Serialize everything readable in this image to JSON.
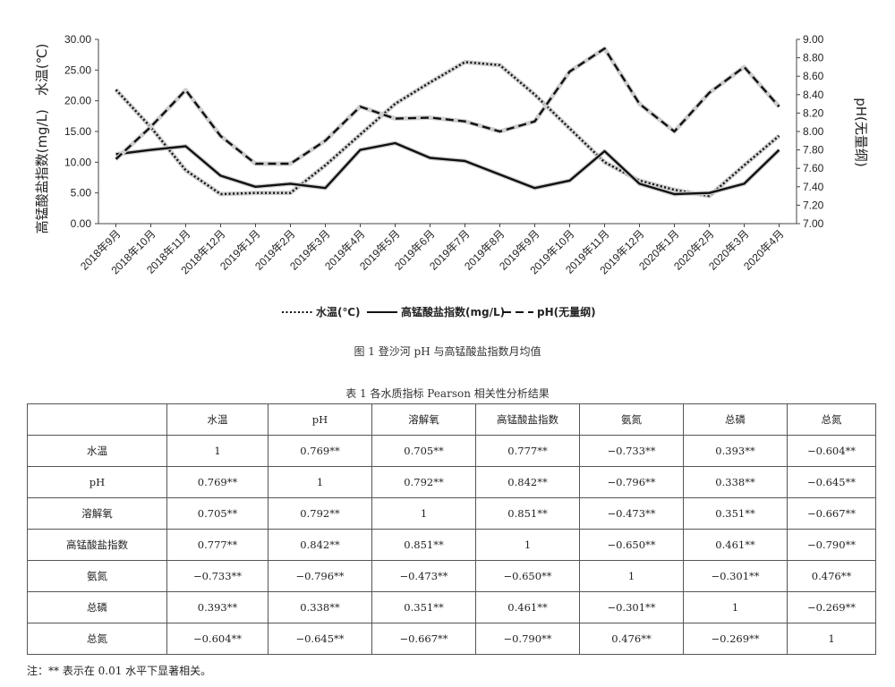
{
  "figure_caption": "图 1 登沙河 pH 与高锰酸盐指数月均值",
  "table_caption": "表 1 各水质指标 Pearson 相关性分析结果",
  "note": "注：** 表示在 0.01 水平下显著相关。",
  "chart_data": {
    "type": "line",
    "categories": [
      "2018年9月",
      "2018年10月",
      "2018年11月",
      "2018年12月",
      "2019年1月",
      "2019年2月",
      "2019年3月",
      "2019年4月",
      "2019年5月",
      "2019年6月",
      "2019年7月",
      "2019年8月",
      "2019年9月",
      "2019年10月",
      "2019年11月",
      "2019年12月",
      "2020年1月",
      "2020年2月",
      "2020年3月",
      "2020年4月"
    ],
    "y_left_label": "高锰酸盐指数(mg/L)　水温(℃)",
    "y_right_label": "pH(无量纲)",
    "y_left_ticks": [
      "0.00",
      "5.00",
      "10.00",
      "15.00",
      "20.00",
      "25.00",
      "30.00"
    ],
    "y_right_ticks": [
      "7.00",
      "7.20",
      "7.40",
      "7.60",
      "7.80",
      "8.00",
      "8.20",
      "8.40",
      "8.60",
      "8.80",
      "9.00"
    ],
    "ylim_left": [
      0,
      30
    ],
    "ylim_right": [
      7.0,
      9.0
    ],
    "grid": false,
    "legend_position": "bottom",
    "series": [
      {
        "name": "水温(℃)",
        "axis": "left",
        "style": "dotted",
        "values": [
          21.8,
          15.7,
          8.7,
          4.8,
          5.0,
          5.0,
          9.5,
          14.5,
          19.5,
          23.0,
          26.3,
          25.8,
          21.0,
          15.5,
          10.0,
          7.0,
          5.5,
          4.5,
          9.5,
          14.3
        ]
      },
      {
        "name": "高锰酸盐指数(mg/L)",
        "axis": "left",
        "style": "solid",
        "values": [
          11.3,
          12.0,
          12.6,
          7.8,
          6.0,
          6.5,
          5.8,
          12.0,
          13.1,
          10.7,
          10.2,
          8.0,
          5.8,
          7.0,
          11.8,
          6.5,
          4.8,
          5.0,
          6.5,
          12.0
        ]
      },
      {
        "name": "pH(无量纲)",
        "axis": "right",
        "style": "dashed",
        "values": [
          7.7,
          8.05,
          8.45,
          7.95,
          7.65,
          7.65,
          7.9,
          8.27,
          8.14,
          8.15,
          8.11,
          8.0,
          8.11,
          8.65,
          8.9,
          8.3,
          8.0,
          8.42,
          8.7,
          8.27
        ]
      }
    ]
  },
  "table": {
    "headers": [
      "",
      "水温",
      "pH",
      "溶解氧",
      "高锰酸盐指数",
      "氨氮",
      "总磷",
      "总氮"
    ],
    "rows": [
      [
        "水温",
        "1",
        "0.769**",
        "0.705**",
        "0.777**",
        "−0.733**",
        "0.393**",
        "−0.604**"
      ],
      [
        "pH",
        "0.769**",
        "1",
        "0.792**",
        "0.842**",
        "−0.796**",
        "0.338**",
        "−0.645**"
      ],
      [
        "溶解氧",
        "0.705**",
        "0.792**",
        "1",
        "0.851**",
        "−0.473**",
        "0.351**",
        "−0.667**"
      ],
      [
        "高锰酸盐指数",
        "0.777**",
        "0.842**",
        "0.851**",
        "1",
        "−0.650**",
        "0.461**",
        "−0.790**"
      ],
      [
        "氨氮",
        "−0.733**",
        "−0.796**",
        "−0.473**",
        "−0.650**",
        "1",
        "−0.301**",
        "0.476**"
      ],
      [
        "总磷",
        "0.393**",
        "0.338**",
        "0.351**",
        "0.461**",
        "−0.301**",
        "1",
        "−0.269**"
      ],
      [
        "总氮",
        "−0.604**",
        "−0.645**",
        "−0.667**",
        "−0.790**",
        "0.476**",
        "−0.269**",
        "1"
      ]
    ]
  }
}
